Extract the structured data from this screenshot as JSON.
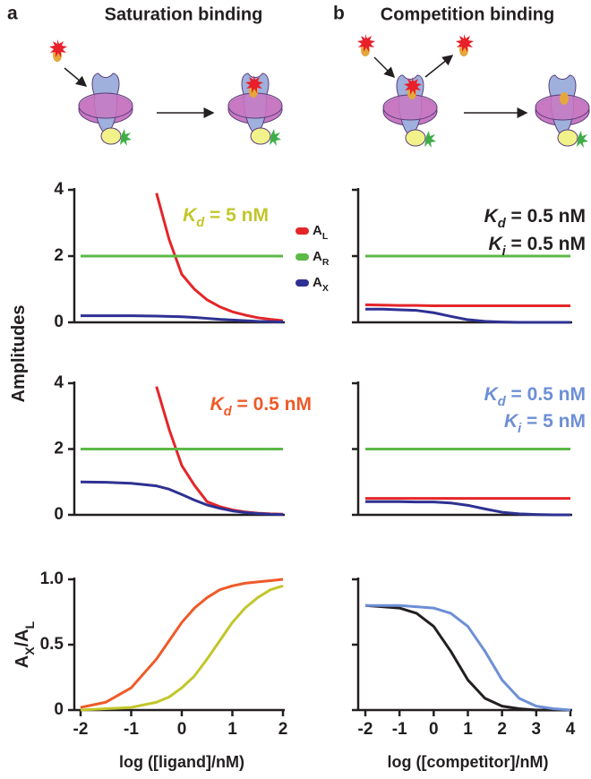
{
  "panels": [
    {
      "label": "a",
      "title": "Saturation binding"
    },
    {
      "label": "b",
      "title": "Competition binding"
    }
  ],
  "chart_data": [
    {
      "type": "line",
      "ylabel": "Amplitudes",
      "legend": true,
      "x": [
        -2,
        -1.5,
        -1,
        -0.5,
        -0.25,
        0,
        0.25,
        0.5,
        0.75,
        1,
        1.25,
        1.5,
        1.75,
        2
      ],
      "xlim": [
        -2,
        2
      ],
      "ylim": [
        0,
        4
      ],
      "yticks": [
        0,
        2,
        4
      ],
      "ytick_labels": true,
      "annotations": [
        {
          "text": "Kd = 5 nM",
          "color": "#c2c62a"
        }
      ],
      "series": [
        {
          "name": "AL",
          "color": "#e32629",
          "values": [
            null,
            null,
            null,
            3.9,
            2.5,
            1.45,
            1.0,
            0.68,
            0.47,
            0.32,
            0.22,
            0.14,
            0.09,
            0.05
          ]
        },
        {
          "name": "AR",
          "color": "#5cb947",
          "values": [
            2,
            2,
            2,
            2,
            2,
            2,
            2,
            2,
            2,
            2,
            2,
            2,
            2,
            2
          ]
        },
        {
          "name": "AX",
          "color": "#2e3192",
          "values": [
            0.2,
            0.2,
            0.2,
            0.19,
            0.18,
            0.17,
            0.15,
            0.12,
            0.09,
            0.07,
            0.05,
            0.03,
            0.02,
            0.01
          ]
        }
      ]
    },
    {
      "type": "line",
      "legend": false,
      "x": [
        -2,
        -1.5,
        -1,
        -0.5,
        -0.25,
        0,
        0.25,
        0.5,
        0.75,
        1,
        1.25,
        1.5,
        1.75,
        2
      ],
      "xlim": [
        -2,
        2
      ],
      "ylim": [
        0,
        4
      ],
      "yticks": [
        0,
        2,
        4
      ],
      "ytick_labels": true,
      "annotations": [
        {
          "text": "Kd = 0.5 nM",
          "color": "#ef5a28"
        }
      ],
      "series": [
        {
          "color": "#e32629",
          "values": [
            null,
            null,
            null,
            3.9,
            2.6,
            1.5,
            0.9,
            0.4,
            0.25,
            0.15,
            0.09,
            0.05,
            0.03,
            0.02
          ]
        },
        {
          "color": "#5cb947",
          "values": [
            2,
            2,
            2,
            2,
            2,
            2,
            2,
            2,
            2,
            2,
            2,
            2,
            2,
            2
          ]
        },
        {
          "color": "#2e3192",
          "values": [
            1.0,
            0.99,
            0.96,
            0.88,
            0.78,
            0.62,
            0.45,
            0.3,
            0.2,
            0.12,
            0.07,
            0.04,
            0.02,
            0.01
          ]
        }
      ]
    },
    {
      "type": "line",
      "ylabel": "AX/AL",
      "xlabel": "log ([ligand]/nM)",
      "legend": false,
      "x": [
        -2,
        -1.5,
        -1,
        -0.5,
        -0.25,
        0,
        0.25,
        0.5,
        0.75,
        1,
        1.25,
        1.5,
        1.75,
        2
      ],
      "xlim": [
        -2,
        2
      ],
      "xticks": [
        -2,
        -1,
        0,
        1,
        2
      ],
      "ylim": [
        0,
        1
      ],
      "yticks": [
        0,
        0.5,
        {
          "value": 1,
          "label": "1.0"
        }
      ],
      "ytick_labels": true,
      "series": [
        {
          "color": "#ef5a28",
          "values": [
            0.02,
            0.06,
            0.17,
            0.39,
            0.53,
            0.67,
            0.78,
            0.86,
            0.92,
            0.95,
            0.97,
            0.98,
            0.99,
            1.0
          ]
        },
        {
          "color": "#c2c62a",
          "values": [
            0.0,
            0.01,
            0.02,
            0.06,
            0.1,
            0.17,
            0.26,
            0.39,
            0.53,
            0.67,
            0.78,
            0.86,
            0.92,
            0.95
          ]
        }
      ]
    },
    {
      "type": "line",
      "legend": false,
      "x": [
        -2,
        -1.5,
        -1,
        -0.5,
        0,
        0.5,
        1,
        1.5,
        2,
        2.5,
        3,
        3.5,
        4
      ],
      "xlim": [
        -2,
        4
      ],
      "ylim": [
        0,
        4
      ],
      "yticks": [
        0,
        2,
        4
      ],
      "ytick_labels": false,
      "annotations": [
        {
          "text": "Kd = 0.5 nM",
          "color": "#231f20"
        },
        {
          "text": "Ki = 0.5 nM",
          "color": "#231f20"
        }
      ],
      "series": [
        {
          "color": "#e32629",
          "values": [
            0.53,
            0.52,
            0.51,
            0.51,
            0.5,
            0.5,
            0.5,
            0.5,
            0.5,
            0.5,
            0.5,
            0.5,
            0.5
          ]
        },
        {
          "color": "#5cb947",
          "values": [
            2,
            2,
            2,
            2,
            2,
            2,
            2,
            2,
            2,
            2,
            2,
            2,
            2
          ]
        },
        {
          "color": "#2e3192",
          "values": [
            0.4,
            0.4,
            0.38,
            0.36,
            0.29,
            0.18,
            0.08,
            0.03,
            0.01,
            0.0,
            0,
            0,
            0
          ]
        }
      ]
    },
    {
      "type": "line",
      "legend": false,
      "x": [
        -2,
        -1.5,
        -1,
        -0.5,
        0,
        0.5,
        1,
        1.5,
        2,
        2.5,
        3,
        3.5,
        4
      ],
      "xlim": [
        -2,
        4
      ],
      "ylim": [
        0,
        4
      ],
      "yticks": [
        0,
        2,
        4
      ],
      "ytick_labels": false,
      "annotations": [
        {
          "text": "Kd = 0.5 nM",
          "color": "#6d8fd6"
        },
        {
          "text": "Ki = 5 nM",
          "color": "#6d8fd6"
        }
      ],
      "series": [
        {
          "color": "#e32629",
          "values": [
            0.5,
            0.5,
            0.5,
            0.5,
            0.5,
            0.5,
            0.5,
            0.5,
            0.5,
            0.5,
            0.5,
            0.5,
            0.5
          ]
        },
        {
          "color": "#5cb947",
          "values": [
            2,
            2,
            2,
            2,
            2,
            2,
            2,
            2,
            2,
            2,
            2,
            2,
            2
          ]
        },
        {
          "color": "#2e3192",
          "values": [
            0.4,
            0.4,
            0.4,
            0.39,
            0.39,
            0.36,
            0.29,
            0.18,
            0.08,
            0.03,
            0.01,
            0.0,
            0.0
          ]
        }
      ]
    },
    {
      "type": "line",
      "xlabel": "log ([competitor]/nM)",
      "legend": false,
      "x": [
        -2,
        -1.5,
        -1,
        -0.5,
        0,
        0.5,
        1,
        1.5,
        2,
        2.5,
        3,
        3.5,
        4
      ],
      "xlim": [
        -2,
        4
      ],
      "xticks": [
        -2,
        -1,
        0,
        1,
        2,
        3,
        4
      ],
      "ylim": [
        0,
        1
      ],
      "yticks": [
        0,
        0.5,
        1
      ],
      "ytick_labels": false,
      "series": [
        {
          "color": "#231f20",
          "values": [
            0.8,
            0.79,
            0.78,
            0.74,
            0.64,
            0.45,
            0.23,
            0.09,
            0.03,
            0.01,
            0.0,
            0.0,
            0
          ]
        },
        {
          "color": "#6d8fd6",
          "values": [
            0.8,
            0.8,
            0.8,
            0.79,
            0.78,
            0.74,
            0.64,
            0.45,
            0.23,
            0.09,
            0.03,
            0.01,
            0.0
          ]
        }
      ]
    }
  ]
}
